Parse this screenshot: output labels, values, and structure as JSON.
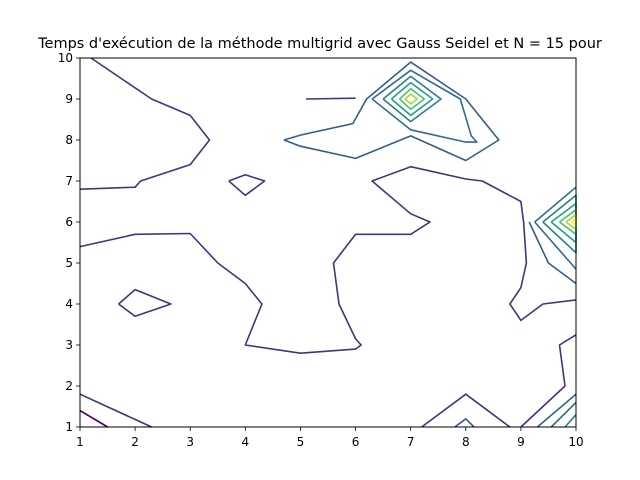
{
  "chart_data": {
    "type": "contour",
    "title": "Temps d'exécution de la méthode multigrid avec Gauss Seidel et N = 15 pour",
    "xlabel": "",
    "ylabel": "",
    "xlim": [
      1,
      10
    ],
    "ylim": [
      1,
      10
    ],
    "x_ticks": [
      "1",
      "2",
      "3",
      "4",
      "5",
      "6",
      "7",
      "8",
      "9",
      "10"
    ],
    "y_ticks": [
      "1",
      "2",
      "3",
      "4",
      "5",
      "6",
      "7",
      "8",
      "9",
      "10"
    ],
    "grid": false,
    "colormap": "viridis",
    "contours": [
      {
        "color": "#440154",
        "points": [
          [
            1.0,
            1.4
          ],
          [
            1.5,
            1.0
          ]
        ]
      },
      {
        "color": "#46327e",
        "points": [
          [
            1.0,
            1.8
          ],
          [
            2.3,
            1.0
          ]
        ]
      },
      {
        "color": "#46327e",
        "points": [
          [
            1.0,
            6.8
          ],
          [
            2.0,
            6.85
          ],
          [
            2.1,
            7.0
          ],
          [
            3.0,
            7.4
          ],
          [
            3.35,
            8.0
          ],
          [
            3.0,
            8.6
          ],
          [
            2.3,
            9.0
          ],
          [
            1.2,
            10.0
          ]
        ]
      },
      {
        "color": "#46327e",
        "points": [
          [
            1.0,
            5.4
          ],
          [
            2.0,
            5.7
          ],
          [
            3.0,
            5.72
          ],
          [
            3.5,
            5.0
          ],
          [
            4.0,
            4.5
          ],
          [
            4.3,
            4.0
          ],
          [
            4.0,
            3.0
          ],
          [
            5.0,
            2.8
          ],
          [
            6.0,
            2.9
          ],
          [
            6.1,
            3.0
          ],
          [
            6.0,
            3.15
          ],
          [
            5.7,
            4.0
          ],
          [
            5.6,
            5.0
          ],
          [
            6.0,
            5.7
          ],
          [
            7.0,
            5.7
          ],
          [
            7.35,
            6.0
          ],
          [
            7.0,
            6.2
          ],
          [
            6.3,
            7.0
          ],
          [
            7.0,
            7.35
          ],
          [
            8.0,
            7.05
          ],
          [
            8.3,
            7.0
          ],
          [
            9.0,
            6.5
          ],
          [
            9.05,
            6.0
          ],
          [
            9.1,
            5.0
          ],
          [
            9.0,
            4.4
          ],
          [
            8.8,
            4.0
          ],
          [
            9.0,
            3.6
          ],
          [
            9.4,
            4.0
          ],
          [
            10.0,
            4.1
          ]
        ]
      },
      {
        "color": "#46327e",
        "points": [
          [
            1.7,
            4.0
          ],
          [
            2.0,
            4.35
          ],
          [
            2.65,
            4.0
          ],
          [
            2.0,
            3.7
          ],
          [
            1.7,
            4.0
          ]
        ]
      },
      {
        "color": "#46327e",
        "points": [
          [
            3.7,
            7.0
          ],
          [
            4.0,
            7.15
          ],
          [
            4.35,
            7.0
          ],
          [
            4.0,
            6.65
          ],
          [
            3.7,
            7.0
          ]
        ]
      },
      {
        "color": "#46327e",
        "points": [
          [
            5.1,
            9.0
          ],
          [
            6.0,
            9.02
          ]
        ]
      },
      {
        "color": "#46327e",
        "points": [
          [
            7.2,
            1.0
          ],
          [
            8.0,
            1.8
          ],
          [
            8.8,
            1.0
          ]
        ]
      },
      {
        "color": "#46327e",
        "points": [
          [
            9.0,
            1.0
          ],
          [
            9.8,
            2.0
          ],
          [
            9.7,
            3.0
          ],
          [
            10.0,
            3.25
          ]
        ]
      },
      {
        "color": "#365c8d",
        "points": [
          [
            7.8,
            1.0
          ],
          [
            8.0,
            1.2
          ],
          [
            8.15,
            1.0
          ]
        ]
      },
      {
        "color": "#365c8d",
        "points": [
          [
            4.7,
            8.0
          ],
          [
            5.0,
            8.12
          ],
          [
            5.95,
            8.4
          ],
          [
            6.2,
            9.0
          ],
          [
            7.0,
            9.9
          ],
          [
            8.0,
            9.0
          ],
          [
            8.6,
            8.0
          ],
          [
            8.0,
            7.5
          ],
          [
            7.0,
            8.1
          ],
          [
            6.0,
            7.55
          ],
          [
            5.0,
            7.85
          ],
          [
            4.7,
            8.0
          ]
        ]
      },
      {
        "color": "#365c8d",
        "points": [
          [
            9.15,
            6.0
          ],
          [
            9.5,
            5.0
          ],
          [
            10.0,
            4.5
          ]
        ]
      },
      {
        "color": "#365c8d",
        "points": [
          [
            9.3,
            1.0
          ],
          [
            10.0,
            1.8
          ]
        ]
      },
      {
        "color": "#2f6b8e",
        "points": [
          [
            6.3,
            9.0
          ],
          [
            7.0,
            9.7
          ],
          [
            7.9,
            9.0
          ],
          [
            8.1,
            8.1
          ],
          [
            8.2,
            7.95
          ],
          [
            8.0,
            7.95
          ],
          [
            7.0,
            8.25
          ],
          [
            6.3,
            9.0
          ]
        ]
      },
      {
        "color": "#2f6b8e",
        "points": [
          [
            9.25,
            6.0
          ],
          [
            10.0,
            6.85
          ]
        ]
      },
      {
        "color": "#2f6b8e",
        "points": [
          [
            9.25,
            6.0
          ],
          [
            10.0,
            4.85
          ]
        ]
      },
      {
        "color": "#2f6b8e",
        "points": [
          [
            9.55,
            1.0
          ],
          [
            10.0,
            1.6
          ]
        ]
      },
      {
        "color": "#277f8e",
        "points": [
          [
            6.5,
            9.0
          ],
          [
            7.0,
            9.55
          ],
          [
            7.55,
            9.0
          ],
          [
            7.0,
            8.45
          ],
          [
            6.5,
            9.0
          ]
        ]
      },
      {
        "color": "#277f8e",
        "points": [
          [
            9.4,
            6.0
          ],
          [
            10.0,
            6.65
          ],
          [
            10.0,
            5.25
          ],
          [
            9.4,
            6.0
          ]
        ]
      },
      {
        "color": "#277f8e",
        "points": [
          [
            9.8,
            1.0
          ],
          [
            10.0,
            1.3
          ]
        ]
      },
      {
        "color": "#1fa187",
        "points": [
          [
            6.65,
            9.0
          ],
          [
            7.0,
            9.4
          ],
          [
            7.4,
            9.0
          ],
          [
            7.0,
            8.6
          ],
          [
            6.65,
            9.0
          ]
        ]
      },
      {
        "color": "#1fa187",
        "points": [
          [
            9.55,
            6.0
          ],
          [
            10.0,
            6.45
          ],
          [
            10.0,
            5.5
          ],
          [
            9.55,
            6.0
          ]
        ]
      },
      {
        "color": "#4ac16d",
        "points": [
          [
            6.8,
            9.0
          ],
          [
            7.0,
            9.25
          ],
          [
            7.25,
            9.0
          ],
          [
            7.0,
            8.75
          ],
          [
            6.8,
            9.0
          ]
        ]
      },
      {
        "color": "#4ac16d",
        "points": [
          [
            9.7,
            6.0
          ],
          [
            10.0,
            6.3
          ],
          [
            10.0,
            5.7
          ],
          [
            9.7,
            6.0
          ]
        ]
      },
      {
        "color": "#a0da39",
        "points": [
          [
            6.9,
            9.0
          ],
          [
            7.0,
            9.12
          ],
          [
            7.12,
            9.0
          ],
          [
            7.0,
            8.88
          ],
          [
            6.9,
            9.0
          ]
        ]
      },
      {
        "color": "#a0da39",
        "points": [
          [
            9.82,
            6.0
          ],
          [
            10.0,
            6.18
          ],
          [
            10.0,
            5.82
          ],
          [
            9.82,
            6.0
          ]
        ]
      },
      {
        "color": "#fde725",
        "points": [
          [
            9.92,
            6.0
          ],
          [
            10.0,
            6.08
          ],
          [
            10.0,
            5.92
          ],
          [
            9.92,
            6.0
          ]
        ]
      }
    ]
  }
}
